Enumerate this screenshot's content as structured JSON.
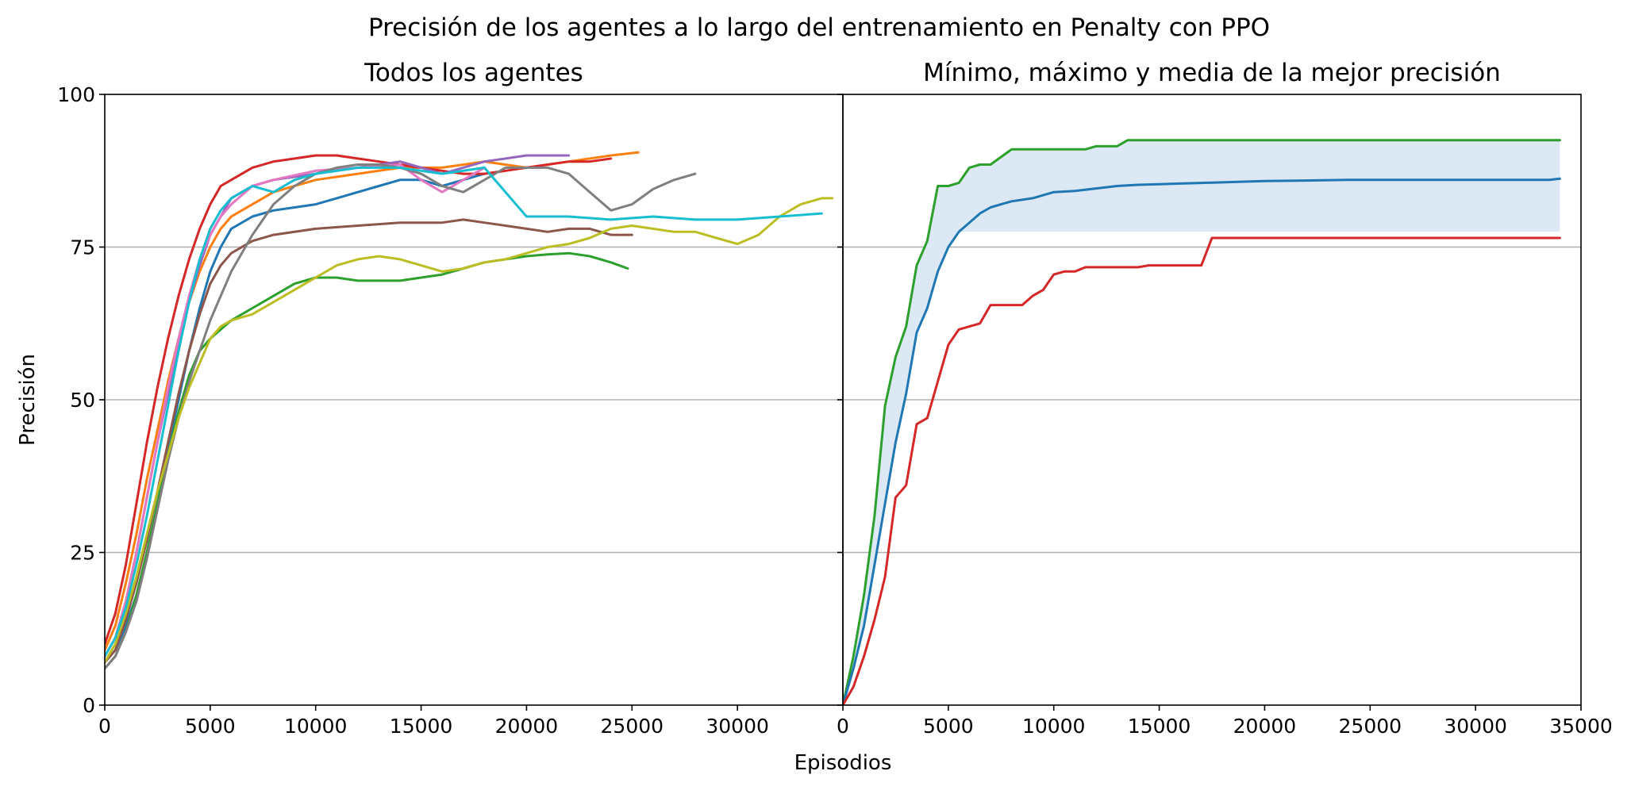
{
  "chart_data": {
    "suptitle": "Precisión de los agentes a lo largo del entrenamiento en Penalty con PPO",
    "xlabel": "Episodios",
    "ylabel": "Precisión",
    "yticks": [
      0,
      25,
      50,
      75,
      100
    ],
    "panels": [
      {
        "title": "Todos los agentes",
        "type": "line",
        "xlim": [
          0,
          35000
        ],
        "ylim": [
          0,
          100
        ],
        "xticks": [
          0,
          5000,
          10000,
          15000,
          20000,
          25000,
          30000
        ],
        "grid": "y",
        "colors": [
          "#1f77b4",
          "#ff7f0e",
          "#2ca02c",
          "#d62728",
          "#9467bd",
          "#8c564b",
          "#e377c2",
          "#7f7f7f",
          "#bcbd22",
          "#17becf"
        ],
        "series": [
          {
            "x": [
              0,
              500,
              1000,
              1500,
              2000,
              2500,
              3000,
              3500,
              4000,
              4500,
              5000,
              5500,
              6000,
              7000,
              8000,
              9000,
              10000,
              11000,
              12000,
              13000,
              14000,
              15000,
              16000,
              17000,
              18000
            ],
            "y": [
              7,
              9,
              13,
              18,
              25,
              33,
              42,
              50,
              58,
              65,
              71,
              75,
              78,
              80,
              81,
              81.5,
              82,
              83,
              84,
              85,
              86,
              86,
              85,
              86,
              87
            ]
          },
          {
            "x": [
              0,
              500,
              1000,
              1500,
              2000,
              2500,
              3000,
              3500,
              4000,
              4500,
              5000,
              5500,
              6000,
              7000,
              8000,
              10000,
              12000,
              14000,
              16000,
              18000,
              20000,
              22000,
              24000,
              25300
            ],
            "y": [
              9,
              13,
              20,
              28,
              37,
              45,
              53,
              60,
              66,
              71,
              75,
              78,
              80,
              82,
              84,
              86,
              87,
              88,
              88,
              89,
              88,
              89,
              90,
              90.5
            ]
          },
          {
            "x": [
              0,
              500,
              1000,
              1500,
              2000,
              2500,
              3000,
              3500,
              4000,
              4500,
              5000,
              5500,
              6000,
              7000,
              8000,
              9000,
              10000,
              11000,
              12000,
              13000,
              14000,
              15000,
              16000,
              17000,
              18000,
              19000,
              20000,
              21000,
              22000,
              23000,
              24000,
              24800
            ],
            "y": [
              6,
              8,
              12,
              18,
              25,
              33,
              41,
              48,
              54,
              58,
              60,
              61.5,
              63,
              65,
              67,
              69,
              70,
              70,
              69.5,
              69.5,
              69.5,
              70,
              70.5,
              71.5,
              72.5,
              73,
              73.5,
              73.8,
              74,
              73.5,
              72.5,
              71.5
            ]
          },
          {
            "x": [
              0,
              500,
              1000,
              1500,
              2000,
              2500,
              3000,
              3500,
              4000,
              4500,
              5000,
              5500,
              6000,
              7000,
              8000,
              9000,
              10000,
              11000,
              12000,
              13000,
              14000,
              15000,
              16000,
              17000,
              18000,
              19000,
              20000,
              21000,
              22000,
              23000,
              24000
            ],
            "y": [
              10,
              15,
              23,
              33,
              43,
              52,
              60,
              67,
              73,
              78,
              82,
              85,
              86,
              88,
              89,
              89.5,
              90,
              90,
              89.5,
              89,
              88.5,
              88,
              87.5,
              87,
              87,
              87.5,
              88,
              88.5,
              89,
              89,
              89.5
            ]
          },
          {
            "x": [
              0,
              500,
              1000,
              1500,
              2000,
              2500,
              3000,
              3500,
              4000,
              4500,
              5000,
              5500,
              6000,
              7000,
              8000,
              10000,
              12000,
              14000,
              16000,
              18000,
              20000,
              22000
            ],
            "y": [
              8,
              11,
              17,
              25,
              34,
              43,
              51,
              59,
              66,
              72,
              77,
              80,
              83,
              85,
              86,
              87,
              88,
              89,
              87,
              89,
              90,
              90
            ]
          },
          {
            "x": [
              0,
              500,
              1000,
              1500,
              2000,
              2500,
              3000,
              3500,
              4000,
              4500,
              5000,
              5500,
              6000,
              7000,
              8000,
              10000,
              12000,
              14000,
              16000,
              17000,
              18000,
              19000,
              20000,
              21000,
              22000,
              23000,
              24000,
              25000
            ],
            "y": [
              7,
              9,
              14,
              20,
              27,
              35,
              43,
              51,
              58,
              64,
              69,
              72,
              74,
              76,
              77,
              78,
              78.5,
              79,
              79,
              79.5,
              79,
              78.5,
              78,
              77.5,
              78,
              78,
              77,
              77
            ]
          },
          {
            "x": [
              0,
              500,
              1000,
              1500,
              2000,
              2500,
              3000,
              3500,
              4000,
              4500,
              5000,
              5500,
              6000,
              7000,
              8000,
              10000,
              12000,
              14000,
              15000,
              16000,
              17000,
              18000
            ],
            "y": [
              8,
              11,
              17,
              25,
              34,
              43,
              52,
              60,
              67,
              73,
              77,
              80,
              82,
              85,
              86,
              87.5,
              88,
              88.5,
              86,
              84,
              86,
              88
            ]
          },
          {
            "x": [
              0,
              500,
              1000,
              1500,
              2000,
              2500,
              3000,
              3500,
              4000,
              4500,
              5000,
              5500,
              6000,
              7000,
              8000,
              9000,
              10000,
              11000,
              12000,
              13000,
              14000,
              15000,
              16000,
              17000,
              18000,
              19000,
              20000,
              21000,
              22000,
              23000,
              24000,
              25000,
              26000,
              27000,
              28000
            ],
            "y": [
              6,
              8,
              12,
              17,
              24,
              32,
              40,
              47,
              53,
              58,
              63,
              67,
              71,
              77,
              82,
              85,
              87,
              88,
              88.5,
              88.5,
              88,
              87,
              85,
              84,
              86,
              88,
              88,
              88,
              87,
              84,
              81,
              82,
              84.5,
              86,
              87
            ]
          },
          {
            "x": [
              0,
              500,
              1000,
              1500,
              2000,
              2500,
              3000,
              3500,
              4000,
              4500,
              5000,
              5500,
              6000,
              7000,
              8000,
              9000,
              10000,
              11000,
              12000,
              13000,
              14000,
              15000,
              16000,
              17000,
              18000,
              19000,
              20000,
              21000,
              22000,
              23000,
              24000,
              25000,
              26000,
              27000,
              28000,
              29000,
              30000,
              31000,
              32000,
              33000,
              34000,
              34500
            ],
            "y": [
              7,
              10,
              15,
              21,
              28,
              35,
              41,
              47,
              52,
              56,
              60,
              62,
              63,
              64,
              66,
              68,
              70,
              72,
              73,
              73.5,
              73,
              72,
              71,
              71.5,
              72.5,
              73,
              74,
              75,
              75.5,
              76.5,
              78,
              78.5,
              78,
              77.5,
              77.5,
              76.5,
              75.5,
              77,
              80,
              82,
              83,
              83
            ]
          },
          {
            "x": [
              0,
              500,
              1000,
              1500,
              2000,
              2500,
              3000,
              3500,
              4000,
              4500,
              5000,
              5500,
              6000,
              7000,
              8000,
              9000,
              10000,
              12000,
              14000,
              16000,
              18000,
              20000,
              22000,
              24000,
              26000,
              28000,
              30000,
              32000,
              34000
            ],
            "y": [
              8,
              11,
              16,
              23,
              31,
              40,
              49,
              58,
              66,
              73,
              78,
              81,
              83,
              85,
              84,
              86,
              87,
              88,
              88,
              87,
              88,
              80,
              80,
              79.5,
              80,
              79.5,
              79.5,
              80,
              80.5
            ]
          }
        ]
      },
      {
        "title": "Mínimo, máximo y media de la mejor precisión",
        "type": "line",
        "xlim": [
          0,
          35000
        ],
        "ylim": [
          0,
          100
        ],
        "xticks": [
          0,
          5000,
          10000,
          15000,
          20000,
          25000,
          30000,
          35000
        ],
        "grid": "y",
        "fill_between": {
          "lower": "mean-band-low",
          "upper": "max",
          "color": "#dce8f3"
        },
        "series": [
          {
            "color": "#2ca02c",
            "x": [
              0,
              500,
              1000,
              1500,
              2000,
              2500,
              3000,
              3500,
              4000,
              4500,
              5000,
              5500,
              6000,
              6500,
              7000,
              8000,
              9000,
              10000,
              11000,
              11500,
              12000,
              13000,
              13500,
              14000,
              16000,
              20000,
              25000,
              30000,
              34000
            ],
            "y": [
              0,
              8,
              18,
              31,
              49,
              57,
              62,
              72,
              76,
              85,
              85,
              85.5,
              88,
              88.5,
              88.5,
              91,
              91,
              91,
              91,
              91,
              91.5,
              91.5,
              92.5,
              92.5,
              92.5,
              92.5,
              92.5,
              92.5,
              92.5
            ]
          },
          {
            "color": "#1f77b4",
            "x": [
              0,
              500,
              1000,
              1500,
              2000,
              2500,
              3000,
              3500,
              4000,
              4500,
              5000,
              5500,
              6000,
              6500,
              7000,
              7500,
              8000,
              9000,
              10000,
              11000,
              12000,
              13000,
              14000,
              15000,
              16000,
              17000,
              18000,
              20000,
              22000,
              24000,
              26000,
              28000,
              30000,
              32000,
              33500,
              34000
            ],
            "y": [
              0,
              6,
              13,
              23,
              33,
              43,
              51,
              61,
              65,
              71,
              75,
              77.5,
              79,
              80.5,
              81.5,
              82,
              82.5,
              83,
              84,
              84.2,
              84.6,
              85,
              85.2,
              85.3,
              85.4,
              85.5,
              85.6,
              85.8,
              85.9,
              86,
              86,
              86,
              86,
              86,
              86,
              86.2
            ]
          },
          {
            "color": "#d62728",
            "x": [
              0,
              500,
              1000,
              1500,
              2000,
              2500,
              3000,
              3500,
              4000,
              4500,
              5000,
              5500,
              6000,
              6500,
              7000,
              8000,
              8500,
              9000,
              9500,
              10000,
              10500,
              11000,
              11500,
              12000,
              13000,
              14000,
              14500,
              15000,
              16000,
              17000,
              17500,
              18000,
              20000,
              25000,
              30000,
              34000
            ],
            "y": [
              0,
              3,
              8,
              14,
              21,
              34,
              36,
              46,
              47,
              53,
              59,
              61.5,
              62,
              62.5,
              65.5,
              65.5,
              65.5,
              67,
              68,
              70.5,
              71,
              71,
              71.7,
              71.7,
              71.7,
              71.7,
              72,
              72,
              72,
              72,
              76.5,
              76.5,
              76.5,
              76.5,
              76.5,
              76.5
            ]
          }
        ],
        "band_low": 77.5
      }
    ]
  }
}
